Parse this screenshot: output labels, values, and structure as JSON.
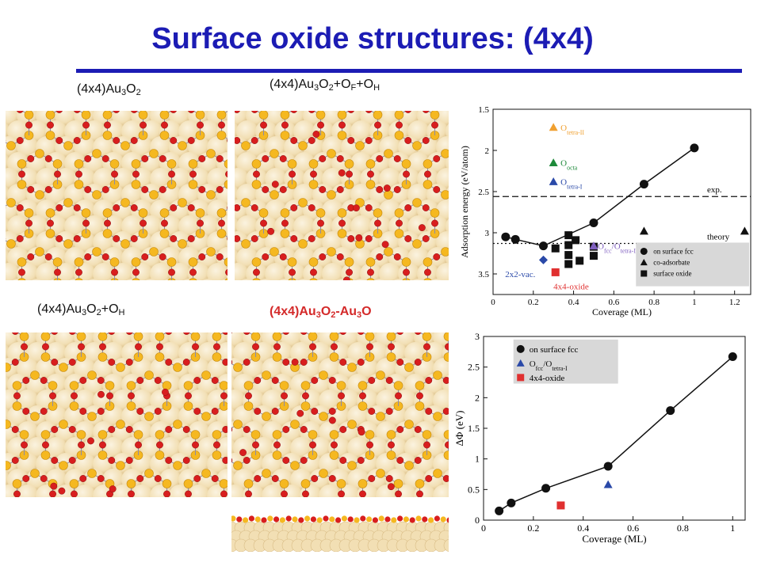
{
  "slide": {
    "title": "Surface oxide structures: (4x4)",
    "title_color": "#1c1cb4"
  },
  "panels": [
    {
      "id": "a",
      "base": "(4x4)Au",
      "s1": "3",
      "mid": "O",
      "s2": "2",
      "tail": "",
      "tail2": "",
      "tail3": ""
    },
    {
      "id": "b",
      "base": "(4x4)Au",
      "s1": "3",
      "mid": "O",
      "s2": "2",
      "tail": "+O",
      "t1": "F",
      "tail2": "+O",
      "t2": "H"
    },
    {
      "id": "c",
      "base": "(4x4)Au",
      "s1": "3",
      "mid": "O",
      "s2": "2",
      "tail": "+O",
      "t1": "H"
    },
    {
      "id": "d",
      "base": "(4x4)Au",
      "s1": "3",
      "mid": "O",
      "s2": "2",
      "tail": "-Au",
      "t1": "3",
      "tail2": "O"
    }
  ],
  "colors": {
    "au_atom": "#f2dfb4",
    "au_atom_shade": "#d9bd86",
    "top_au": "#f5b820",
    "oxygen": "#d81e1e",
    "black": "#111111",
    "green": "#1e8a3a",
    "blue": "#2a49a8",
    "orange": "#f0a030",
    "purple": "#8060c0",
    "red_sq": "#e03030"
  },
  "icons": [
    "circle-marker",
    "triangle-marker",
    "square-marker",
    "diamond-marker"
  ],
  "chart_data": [
    {
      "type": "scatter",
      "title": "",
      "xlabel": "Coverage (ML)",
      "ylabel": "Adsorption energy (eV/atom)",
      "xlim": [
        0,
        1.28
      ],
      "ylim": [
        3.75,
        1.5
      ],
      "y_inverted": true,
      "xticks": [
        "0",
        "0.2",
        "0.4",
        "0.6",
        "0.8",
        "1",
        "1.2"
      ],
      "xtick_values": [
        0,
        0.2,
        0.4,
        0.6,
        0.8,
        1.0,
        1.2
      ],
      "yticks": [
        "1.5",
        "2",
        "2.5",
        "3",
        "3.5"
      ],
      "ytick_values": [
        1.5,
        2,
        2.5,
        3,
        3.5
      ],
      "hlines": [
        {
          "y": 2.56,
          "label": "exp.",
          "style": "dashed"
        },
        {
          "y": 3.13,
          "label": "theory",
          "style": "dotted"
        }
      ],
      "annotations": [
        {
          "text": "2x2-vac.",
          "x": 0.06,
          "y": 3.5,
          "color": "#2a49a8"
        },
        {
          "text": "4x4-oxide",
          "x": 0.3,
          "y": 3.65,
          "color": "#e03030"
        }
      ],
      "side_legend": [
        {
          "label": "O",
          "sub": "tetra-II",
          "color": "#f0a030",
          "marker": "triangle",
          "x": 0.3,
          "y": 1.72
        },
        {
          "label": "O",
          "sub": "octa",
          "color": "#1e8a3a",
          "marker": "triangle",
          "x": 0.3,
          "y": 2.15
        },
        {
          "label": "O",
          "sub": "tetra-I",
          "color": "#2a49a8",
          "marker": "triangle",
          "x": 0.3,
          "y": 2.38
        }
      ],
      "ofcc_label": {
        "label": "O",
        "sub1": "fcc",
        "mid": "/O",
        "sub2": "tetra-I",
        "color": "#8060c0"
      },
      "legend": [
        "on surface fcc",
        "co-adsorbate",
        "surface oxide"
      ],
      "series": [
        {
          "name": "on surface fcc",
          "marker": "circle",
          "color": "#111111",
          "line": true,
          "x": [
            0.0625,
            0.111,
            0.25,
            0.5,
            0.75,
            1.0
          ],
          "y": [
            3.05,
            3.08,
            3.16,
            2.88,
            2.41,
            1.97
          ]
        },
        {
          "name": "",
          "marker": "circle",
          "color": "#111111",
          "line": true,
          "x": [
            0.25,
            0.5
          ],
          "y": [
            3.16,
            3.16
          ],
          "hidden": true
        },
        {
          "name": "co-adsorbate",
          "marker": "triangle",
          "color": "#111111",
          "line": false,
          "x": [
            0.75,
            1.25
          ],
          "y": [
            2.98,
            2.98
          ]
        },
        {
          "name": "surface oxide",
          "marker": "square",
          "color": "#111111",
          "line": false,
          "x": [
            0.31,
            0.375,
            0.375,
            0.375,
            0.375,
            0.41,
            0.43,
            0.5,
            0.5
          ],
          "y": [
            3.19,
            3.03,
            3.15,
            3.27,
            3.38,
            3.09,
            3.34,
            3.17,
            3.28
          ]
        },
        {
          "name": "",
          "marker": "triangle",
          "color": "#8060c0",
          "line": false,
          "x": [
            0.5
          ],
          "y": [
            3.16
          ]
        },
        {
          "name": "",
          "marker": "diamond",
          "color": "#2a49a8",
          "line": false,
          "x": [
            0.25
          ],
          "y": [
            3.33
          ]
        },
        {
          "name": "",
          "marker": "square",
          "color": "#e03030",
          "line": false,
          "x": [
            0.31
          ],
          "y": [
            3.48
          ]
        }
      ]
    },
    {
      "type": "line",
      "title": "",
      "xlabel": "Coverage (ML)",
      "ylabel": "ΔΦ (eV)",
      "xlim": [
        0,
        1.05
      ],
      "ylim": [
        0,
        3
      ],
      "xticks": [
        "0",
        "0.2",
        "0.4",
        "0.6",
        "0.8",
        "1"
      ],
      "xtick_values": [
        0,
        0.2,
        0.4,
        0.6,
        0.8,
        1.0
      ],
      "yticks": [
        "0",
        "0.5",
        "1",
        "1.5",
        "2",
        "2.5",
        "3"
      ],
      "ytick_values": [
        0,
        0.5,
        1,
        1.5,
        2,
        2.5,
        3
      ],
      "legend": [
        {
          "label": "on surface fcc",
          "marker": "circle",
          "color": "#111111"
        },
        {
          "label": "O",
          "sub1": "fcc",
          "mid": "/O",
          "sub2": "tetra-I",
          "marker": "triangle",
          "color": "#2a49a8"
        },
        {
          "label": "4x4-oxide",
          "marker": "square",
          "color": "#e03030"
        }
      ],
      "series": [
        {
          "name": "on surface fcc",
          "marker": "circle",
          "color": "#111111",
          "line": true,
          "x": [
            0.0625,
            0.111,
            0.25,
            0.5,
            0.75,
            1.0
          ],
          "y": [
            0.15,
            0.28,
            0.52,
            0.88,
            1.79,
            2.67
          ]
        },
        {
          "name": "O",
          "marker": "triangle",
          "color": "#2a49a8",
          "line": false,
          "x": [
            0.5
          ],
          "y": [
            0.58
          ]
        },
        {
          "name": "4x4-oxide",
          "marker": "square",
          "color": "#e03030",
          "line": false,
          "x": [
            0.31
          ],
          "y": [
            0.24
          ]
        }
      ]
    }
  ]
}
